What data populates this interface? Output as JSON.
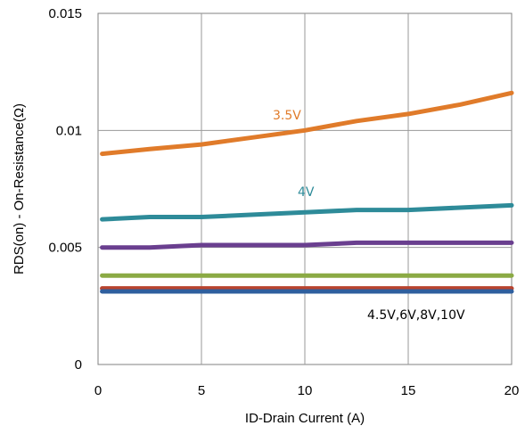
{
  "chart_data": {
    "type": "line",
    "title": "",
    "xlabel": "ID-Drain Current (A)",
    "ylabel": "RDS(on) - On-Resistance(Ω)",
    "xlim": [
      0,
      20
    ],
    "ylim": [
      0,
      0.015
    ],
    "x_ticks": [
      0,
      5,
      10,
      15,
      20
    ],
    "x_tick_labels": [
      "0",
      "5",
      "10",
      "15",
      "20"
    ],
    "y_ticks": [
      0,
      0.005,
      0.01,
      0.015
    ],
    "y_tick_labels": [
      "0",
      "0.005",
      "0.01",
      "0.015"
    ],
    "grid": true,
    "legend": "none",
    "series": [
      {
        "color": "#E07B2A",
        "x": [
          0.2,
          2.5,
          5,
          7.5,
          10,
          12.5,
          15,
          17.5,
          20
        ],
        "y": [
          0.009,
          0.0092,
          0.0094,
          0.0097,
          0.01,
          0.0104,
          0.0107,
          0.0111,
          0.0116
        ]
      },
      {
        "color": "#2E8B99",
        "x": [
          0.2,
          2.5,
          5,
          7.5,
          10,
          12.5,
          15,
          17.5,
          20
        ],
        "y": [
          0.0062,
          0.0063,
          0.0063,
          0.0064,
          0.0065,
          0.0066,
          0.0066,
          0.0067,
          0.0068
        ]
      },
      {
        "color": "#6A3F8F",
        "x": [
          0.2,
          2.5,
          5,
          7.5,
          10,
          12.5,
          15,
          17.5,
          20
        ],
        "y": [
          0.005,
          0.005,
          0.0051,
          0.0051,
          0.0051,
          0.0052,
          0.0052,
          0.0052,
          0.0052
        ]
      },
      {
        "color": "#8BAA44",
        "x": [
          0.2,
          2.5,
          5,
          7.5,
          10,
          12.5,
          15,
          17.5,
          20
        ],
        "y": [
          0.0038,
          0.0038,
          0.0038,
          0.0038,
          0.0038,
          0.0038,
          0.0038,
          0.0038,
          0.0038
        ]
      },
      {
        "color": "#B8432E",
        "x": [
          0.2,
          2.5,
          5,
          7.5,
          10,
          12.5,
          15,
          17.5,
          20
        ],
        "y": [
          0.00325,
          0.00325,
          0.00325,
          0.00325,
          0.00325,
          0.00325,
          0.00325,
          0.00325,
          0.00325
        ]
      },
      {
        "color": "#2F5F9E",
        "x": [
          0.2,
          2.5,
          5,
          7.5,
          10,
          12.5,
          15,
          17.5,
          20
        ],
        "y": [
          0.00312,
          0.00312,
          0.00312,
          0.00312,
          0.00312,
          0.00312,
          0.00312,
          0.00312,
          0.00312
        ]
      }
    ],
    "annotations": [
      {
        "text": "3.5V",
        "color": "#E07B2A"
      },
      {
        "text": "4V",
        "color": "#2E8B99"
      },
      {
        "text": "4.5V,6V,8V,10V",
        "color": "#000000"
      }
    ]
  }
}
